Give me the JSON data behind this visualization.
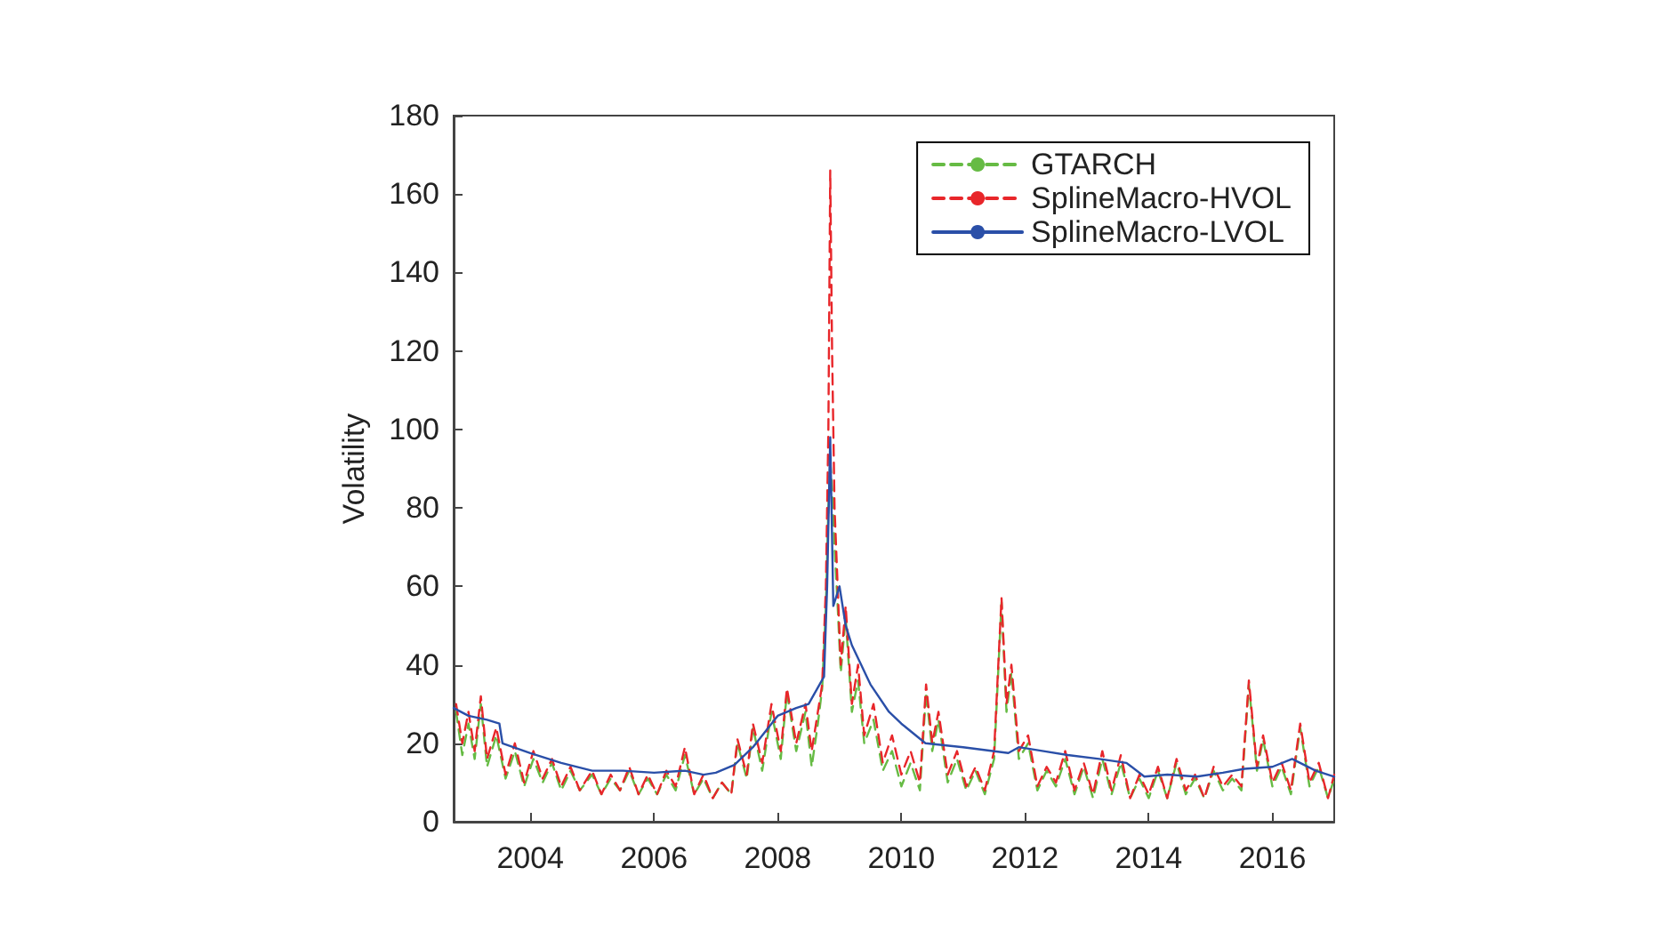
{
  "chart_data": {
    "type": "line",
    "ylabel": "Volatility",
    "xlim": [
      2002.76,
      2017.0
    ],
    "xticks": [
      2004,
      2006,
      2008,
      2010,
      2012,
      2014,
      2016
    ],
    "ylim": [
      0,
      180
    ],
    "yticks": [
      0,
      20,
      40,
      60,
      80,
      100,
      120,
      140,
      160,
      180
    ],
    "grid": false,
    "legend": "top right",
    "marker": "none",
    "series": [
      {
        "name": "GTARCH",
        "color": "#66bb44",
        "line_style": "dashed",
        "x": [
          2002.8,
          2002.9,
          2003.0,
          2003.1,
          2003.2,
          2003.3,
          2003.45,
          2003.6,
          2003.75,
          2003.9,
          2004.05,
          2004.2,
          2004.35,
          2004.5,
          2004.65,
          2004.8,
          2005.0,
          2005.15,
          2005.3,
          2005.45,
          2005.6,
          2005.75,
          2005.9,
          2006.05,
          2006.2,
          2006.35,
          2006.5,
          2006.65,
          2006.8,
          2006.95,
          2007.1,
          2007.25,
          2007.35,
          2007.5,
          2007.6,
          2007.75,
          2007.9,
          2008.05,
          2008.15,
          2008.3,
          2008.45,
          2008.55,
          2008.65,
          2008.72,
          2008.78,
          2008.82,
          2008.85,
          2008.88,
          2008.92,
          2008.97,
          2009.02,
          2009.1,
          2009.2,
          2009.3,
          2009.4,
          2009.55,
          2009.7,
          2009.85,
          2010.0,
          2010.15,
          2010.3,
          2010.4,
          2010.5,
          2010.6,
          2010.75,
          2010.9,
          2011.05,
          2011.2,
          2011.35,
          2011.5,
          2011.62,
          2011.7,
          2011.78,
          2011.9,
          2012.05,
          2012.2,
          2012.35,
          2012.5,
          2012.65,
          2012.8,
          2012.95,
          2013.1,
          2013.25,
          2013.4,
          2013.55,
          2013.7,
          2013.85,
          2014.0,
          2014.15,
          2014.3,
          2014.45,
          2014.6,
          2014.75,
          2014.9,
          2015.05,
          2015.2,
          2015.35,
          2015.5,
          2015.62,
          2015.75,
          2015.85,
          2016.0,
          2016.15,
          2016.3,
          2016.45,
          2016.6,
          2016.75,
          2016.9,
          2017.0
        ],
        "values": [
          28,
          17,
          25,
          16,
          30,
          14,
          22,
          11,
          18,
          9,
          16,
          10,
          15,
          8,
          13,
          8,
          12,
          7,
          11,
          8,
          13,
          7,
          11,
          7,
          12,
          8,
          17,
          7,
          11,
          6,
          10,
          7,
          20,
          11,
          24,
          13,
          28,
          16,
          33,
          18,
          28,
          14,
          25,
          34,
          55,
          80,
          92,
          85,
          70,
          55,
          38,
          52,
          28,
          36,
          20,
          26,
          13,
          18,
          9,
          15,
          8,
          33,
          18,
          26,
          10,
          16,
          8,
          13,
          7,
          16,
          56,
          28,
          38,
          16,
          20,
          8,
          13,
          9,
          16,
          7,
          14,
          6,
          16,
          7,
          15,
          6,
          11,
          6,
          13,
          6,
          15,
          7,
          11,
          6,
          13,
          8,
          11,
          8,
          35,
          13,
          21,
          9,
          14,
          7,
          24,
          9,
          14,
          6,
          11
        ]
      },
      {
        "name": "SplineMacro-HVOL",
        "color": "#e8262a",
        "line_style": "dashed",
        "x": [
          2002.8,
          2002.9,
          2003.0,
          2003.1,
          2003.2,
          2003.3,
          2003.45,
          2003.6,
          2003.75,
          2003.9,
          2004.05,
          2004.2,
          2004.35,
          2004.5,
          2004.65,
          2004.8,
          2005.0,
          2005.15,
          2005.3,
          2005.45,
          2005.6,
          2005.75,
          2005.9,
          2006.05,
          2006.2,
          2006.35,
          2006.5,
          2006.65,
          2006.8,
          2006.95,
          2007.1,
          2007.25,
          2007.35,
          2007.5,
          2007.6,
          2007.75,
          2007.9,
          2008.05,
          2008.15,
          2008.3,
          2008.45,
          2008.55,
          2008.65,
          2008.72,
          2008.78,
          2008.82,
          2008.85,
          2008.88,
          2008.92,
          2008.97,
          2009.02,
          2009.1,
          2009.2,
          2009.3,
          2009.4,
          2009.55,
          2009.7,
          2009.85,
          2010.0,
          2010.15,
          2010.3,
          2010.4,
          2010.5,
          2010.6,
          2010.75,
          2010.9,
          2011.05,
          2011.2,
          2011.35,
          2011.5,
          2011.62,
          2011.7,
          2011.78,
          2011.9,
          2012.05,
          2012.2,
          2012.35,
          2012.5,
          2012.65,
          2012.8,
          2012.95,
          2013.1,
          2013.25,
          2013.4,
          2013.55,
          2013.7,
          2013.85,
          2014.0,
          2014.15,
          2014.3,
          2014.45,
          2014.6,
          2014.75,
          2014.9,
          2015.05,
          2015.2,
          2015.35,
          2015.5,
          2015.62,
          2015.75,
          2015.85,
          2016.0,
          2016.15,
          2016.3,
          2016.45,
          2016.6,
          2016.75,
          2016.9,
          2017.0
        ],
        "values": [
          30,
          20,
          28,
          18,
          32,
          16,
          24,
          12,
          20,
          10,
          18,
          11,
          16,
          9,
          14,
          8,
          13,
          7,
          12,
          8,
          14,
          7,
          12,
          7,
          13,
          9,
          19,
          7,
          12,
          6,
          10,
          7,
          21,
          12,
          25,
          15,
          30,
          18,
          34,
          20,
          30,
          18,
          28,
          35,
          60,
          100,
          166,
          120,
          80,
          60,
          40,
          55,
          30,
          40,
          22,
          30,
          15,
          22,
          12,
          18,
          10,
          35,
          20,
          28,
          12,
          18,
          9,
          14,
          8,
          18,
          57,
          30,
          40,
          18,
          22,
          9,
          14,
          10,
          18,
          8,
          15,
          7,
          18,
          8,
          17,
          6,
          12,
          7,
          14,
          6,
          16,
          8,
          12,
          6,
          14,
          9,
          12,
          9,
          36,
          14,
          22,
          10,
          15,
          8,
          25,
          10,
          15,
          6,
          12
        ]
      },
      {
        "name": "SplineMacro-LVOL",
        "color": "#2a4fa8",
        "line_style": "solid",
        "x": [
          2002.76,
          2003.0,
          2003.3,
          2003.5,
          2003.55,
          2004.0,
          2004.5,
          2005.0,
          2005.5,
          2006.0,
          2006.5,
          2006.8,
          2007.0,
          2007.3,
          2007.6,
          2008.0,
          2008.3,
          2008.5,
          2008.75,
          2008.8,
          2008.85,
          2008.9,
          2009.0,
          2009.1,
          2009.2,
          2009.35,
          2009.5,
          2009.8,
          2010.0,
          2010.39,
          2011.0,
          2011.73,
          2011.9,
          2012.3,
          2012.69,
          2013.2,
          2013.64,
          2013.93,
          2014.3,
          2014.78,
          2015.2,
          2015.55,
          2016.0,
          2016.32,
          2016.7,
          2017.0
        ],
        "values": [
          29,
          27,
          26,
          25,
          20,
          17.5,
          15,
          13,
          13,
          12.5,
          13,
          12,
          12.5,
          14.5,
          19,
          27,
          29,
          30,
          37,
          60,
          98,
          55,
          60,
          50,
          45,
          40,
          35,
          28,
          25,
          20,
          19,
          17.5,
          19,
          18,
          17,
          16,
          15,
          11.5,
          12,
          11.5,
          12.5,
          13.5,
          14,
          16,
          13,
          11.5
        ]
      }
    ]
  }
}
